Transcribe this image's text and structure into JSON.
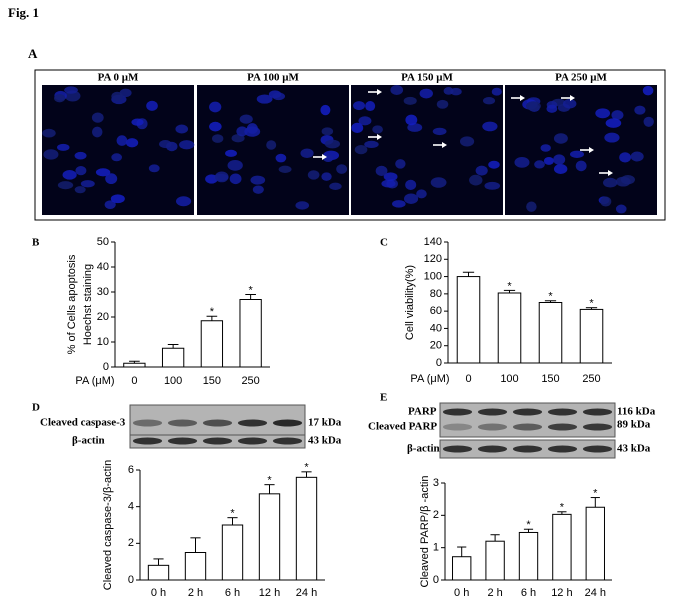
{
  "figure": {
    "title": "Fig. 1",
    "panel_a": {
      "letter": "A",
      "images": [
        "PA 0 μM",
        "PA 100 μM",
        "PA 150 μM",
        "PA 250 μM"
      ]
    },
    "panel_d_blot": {
      "bands": [
        "Cleaved caspase-3",
        "β-actin"
      ],
      "sizes": [
        "17 kDa",
        "43 kDa"
      ]
    },
    "panel_e_blot": {
      "bands": [
        "PARP",
        "Cleaved PARP",
        "β-actin"
      ],
      "sizes": [
        "116 kDa",
        "89 kDa",
        "43 kDa"
      ]
    }
  },
  "chart_data": [
    {
      "type": "bar",
      "panel": "B",
      "ylabel": [
        "% of Cells apoptosis",
        "Hoechst staining"
      ],
      "xlabel": "PA (μM)",
      "categories": [
        "0",
        "100",
        "150",
        "250"
      ],
      "values": [
        1.5,
        7.5,
        18.5,
        27
      ],
      "errors": [
        0.8,
        1.5,
        1.8,
        2
      ],
      "significance": [
        null,
        null,
        "*",
        "*"
      ],
      "color": "#ffffff",
      "ylim": [
        0,
        50
      ],
      "yticks": [
        0,
        10,
        20,
        30,
        40,
        50
      ]
    },
    {
      "type": "bar",
      "panel": "C",
      "ylabel": [
        "Cell viability(%)"
      ],
      "xlabel": "PA (μM)",
      "categories": [
        "0",
        "100",
        "150",
        "250"
      ],
      "values": [
        100,
        81,
        70,
        62
      ],
      "errors": [
        5,
        3,
        2,
        2
      ],
      "significance": [
        null,
        "*",
        "*",
        "*"
      ],
      "color": "#ffffff",
      "ylim": [
        0,
        140
      ],
      "yticks": [
        0,
        20,
        40,
        60,
        80,
        100,
        120,
        140
      ]
    },
    {
      "type": "bar",
      "panel": "D",
      "ylabel": [
        "Cleaved caspase-3/β-actin"
      ],
      "categories": [
        "0 h",
        "2 h",
        "6 h",
        "12 h",
        "24 h"
      ],
      "values": [
        0.8,
        1.5,
        3.0,
        4.7,
        5.6
      ],
      "errors": [
        0.35,
        0.8,
        0.4,
        0.5,
        0.3
      ],
      "significance": [
        null,
        null,
        "*",
        "*",
        "*"
      ],
      "color": "#ffffff",
      "ylim": [
        0,
        6
      ],
      "yticks": [
        0,
        2,
        4,
        6
      ]
    },
    {
      "type": "bar",
      "panel": "E",
      "ylabel": [
        "Cleaved PARP/β -actin"
      ],
      "categories": [
        "0 h",
        "2 h",
        "6 h",
        "12 h",
        "24 h"
      ],
      "values": [
        0.72,
        1.2,
        1.47,
        2.03,
        2.25
      ],
      "errors": [
        0.3,
        0.2,
        0.1,
        0.08,
        0.3
      ],
      "significance": [
        null,
        null,
        "*",
        "*",
        "*"
      ],
      "color": "#ffffff",
      "ylim": [
        0,
        3
      ],
      "yticks": [
        0,
        1,
        2,
        3
      ]
    }
  ]
}
